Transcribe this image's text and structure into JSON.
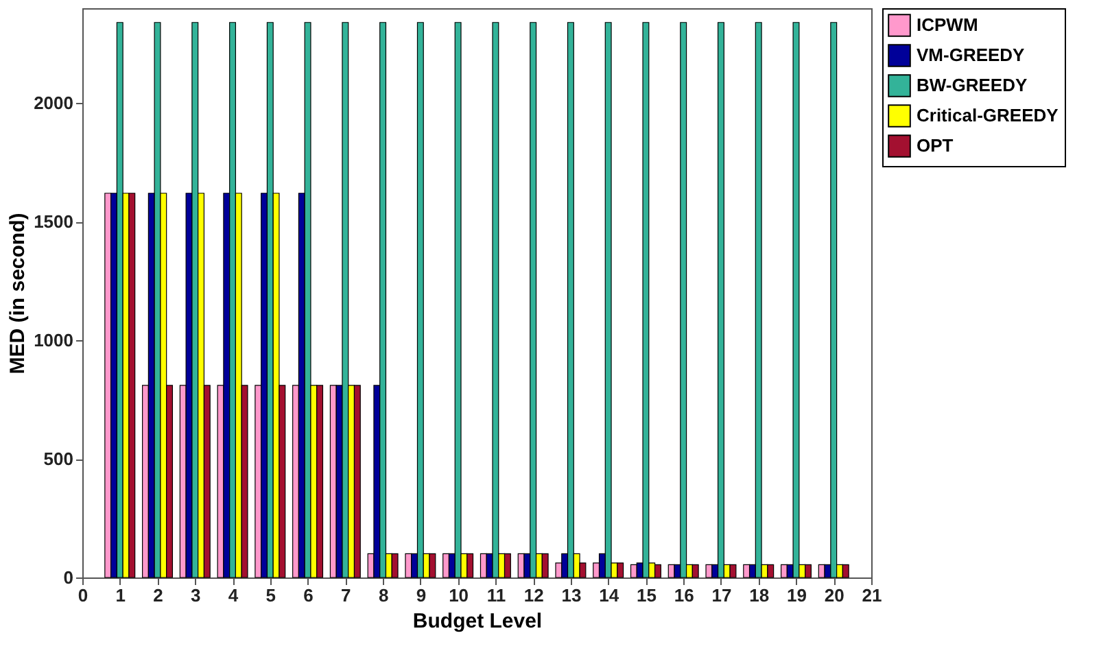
{
  "chart_data": {
    "type": "bar",
    "xlabel": "Budget Level",
    "ylabel": "MED (in second)",
    "x": [
      1,
      2,
      3,
      4,
      5,
      6,
      7,
      8,
      9,
      10,
      11,
      12,
      13,
      14,
      15,
      16,
      17,
      18,
      19,
      20
    ],
    "xlim": [
      0,
      21
    ],
    "xticks": [
      0,
      1,
      2,
      3,
      4,
      5,
      6,
      7,
      8,
      9,
      10,
      11,
      12,
      13,
      14,
      15,
      16,
      17,
      18,
      19,
      20,
      21
    ],
    "ylim": [
      0,
      2400
    ],
    "yticks": [
      0,
      500,
      1000,
      1500,
      2000
    ],
    "grid": false,
    "legend": "right",
    "series": [
      {
        "name": "ICPWM",
        "color": "#ff99cc",
        "values": [
          1620,
          810,
          810,
          810,
          810,
          810,
          810,
          100,
          100,
          100,
          100,
          100,
          61,
          61,
          54,
          54,
          54,
          54,
          54,
          54
        ]
      },
      {
        "name": "VM-GREEDY",
        "color": "#000099",
        "values": [
          1620,
          1620,
          1620,
          1620,
          1620,
          1620,
          810,
          810,
          100,
          100,
          100,
          100,
          100,
          100,
          61,
          54,
          54,
          54,
          54,
          54
        ]
      },
      {
        "name": "BW-GREEDY",
        "color": "#33b399",
        "values": [
          2340,
          2340,
          2340,
          2340,
          2340,
          2340,
          2340,
          2340,
          2340,
          2340,
          2340,
          2340,
          2340,
          2340,
          2340,
          2340,
          2340,
          2340,
          2340,
          2340
        ]
      },
      {
        "name": "Critical-GREEDY",
        "color": "#ffff00",
        "values": [
          1620,
          1620,
          1620,
          1620,
          1620,
          810,
          810,
          100,
          100,
          100,
          100,
          100,
          100,
          61,
          61,
          54,
          54,
          54,
          54,
          54
        ]
      },
      {
        "name": "OPT",
        "color": "#a31030",
        "values": [
          1620,
          810,
          810,
          810,
          810,
          810,
          810,
          100,
          100,
          100,
          100,
          100,
          61,
          61,
          54,
          54,
          54,
          54,
          54,
          54
        ]
      }
    ]
  }
}
